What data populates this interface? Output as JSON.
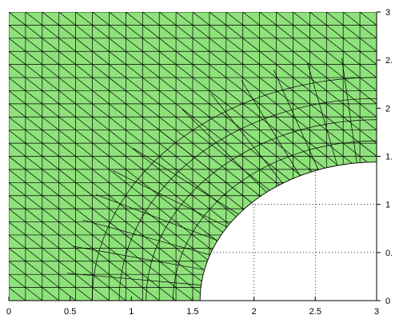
{
  "figure": {
    "type": "finite-element triangular mesh",
    "mesh_fill": "#8ee27a",
    "edge_color": "#000000",
    "hole_grid": "dotted"
  },
  "axes": {
    "x_ticks": [
      {
        "value": 0,
        "label": "0"
      },
      {
        "value": 0.5,
        "label": "0.5"
      },
      {
        "value": 1,
        "label": "1"
      },
      {
        "value": 1.5,
        "label": "1.5"
      },
      {
        "value": 2,
        "label": "2"
      },
      {
        "value": 2.5,
        "label": "2.5"
      },
      {
        "value": 3,
        "label": "3"
      }
    ],
    "y_ticks": [
      {
        "value": 0,
        "label": "0"
      },
      {
        "value": 0.5,
        "label": "0."
      },
      {
        "value": 1,
        "label": "1"
      },
      {
        "value": 1.5,
        "label": "1."
      },
      {
        "value": 2,
        "label": "2"
      },
      {
        "value": 2.5,
        "label": "2."
      },
      {
        "value": 3,
        "label": "3"
      }
    ]
  },
  "geometry": {
    "domain": "square [0,3] x [0,3] with quarter-circle hole",
    "hole_center": [
      3,
      0
    ],
    "hole_radius": 1.44
  }
}
